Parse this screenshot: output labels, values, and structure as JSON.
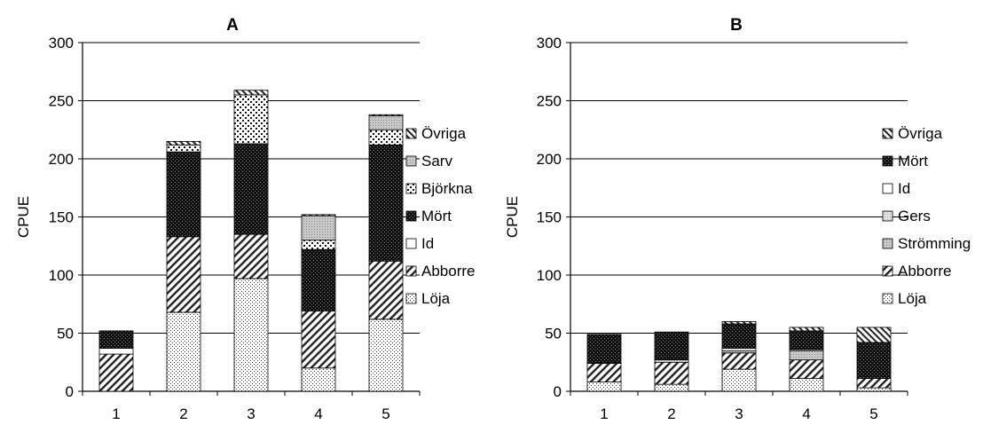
{
  "chart_data": [
    {
      "type": "bar",
      "stacked": true,
      "title": "A",
      "xlabel": "",
      "ylabel": "CPUE",
      "ylim": [
        0,
        300
      ],
      "yticks": [
        0,
        50,
        100,
        150,
        200,
        250,
        300
      ],
      "grid": true,
      "legend_position": "right",
      "categories": [
        "1",
        "2",
        "3",
        "4",
        "5"
      ],
      "series": [
        {
          "name": "Löja",
          "pattern": "dots",
          "values": [
            0,
            68,
            97,
            20,
            62
          ]
        },
        {
          "name": "Abborre",
          "pattern": "diag",
          "values": [
            32,
            65,
            38,
            49,
            50
          ]
        },
        {
          "name": "Id",
          "pattern": "white",
          "values": [
            5,
            0,
            0,
            0,
            0
          ]
        },
        {
          "name": "Mört",
          "pattern": "dark",
          "values": [
            15,
            73,
            78,
            53,
            100
          ]
        },
        {
          "name": "Björkna",
          "pattern": "coarsedots",
          "values": [
            0,
            6,
            42,
            8,
            13
          ]
        },
        {
          "name": "Sarv",
          "pattern": "gray",
          "values": [
            0,
            0,
            0,
            21,
            12
          ]
        },
        {
          "name": "Övriga",
          "pattern": "back",
          "values": [
            0,
            3,
            4,
            1,
            1
          ]
        }
      ]
    },
    {
      "type": "bar",
      "stacked": true,
      "title": "B",
      "xlabel": "",
      "ylabel": "CPUE",
      "ylim": [
        0,
        300
      ],
      "yticks": [
        0,
        50,
        100,
        150,
        200,
        250,
        300
      ],
      "grid": true,
      "legend_position": "right",
      "categories": [
        "1",
        "2",
        "3",
        "4",
        "5"
      ],
      "series": [
        {
          "name": "Löja",
          "pattern": "dots",
          "values": [
            8,
            6,
            19,
            11,
            3
          ]
        },
        {
          "name": "Abborre",
          "pattern": "diag",
          "values": [
            16,
            19,
            14,
            16,
            8
          ]
        },
        {
          "name": "Strömming",
          "pattern": "gray",
          "values": [
            0,
            0,
            2,
            8,
            0
          ]
        },
        {
          "name": "Gers",
          "pattern": "lightgray",
          "values": [
            0,
            2,
            0,
            0,
            0
          ]
        },
        {
          "name": "Id",
          "pattern": "white",
          "values": [
            0,
            0,
            2,
            1,
            0
          ]
        },
        {
          "name": "Mört",
          "pattern": "dark",
          "values": [
            25,
            24,
            21,
            16,
            31
          ]
        },
        {
          "name": "Övriga",
          "pattern": "back",
          "values": [
            0,
            0,
            2,
            3,
            13
          ]
        }
      ]
    }
  ]
}
